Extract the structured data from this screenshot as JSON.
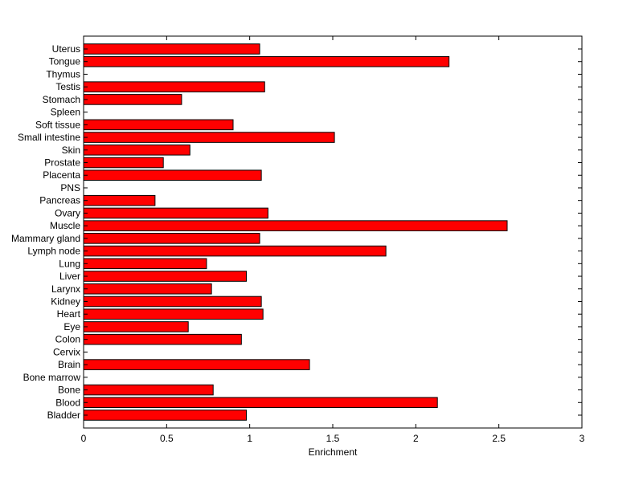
{
  "chart_data": {
    "type": "bar",
    "orientation": "horizontal",
    "categories": [
      "Bladder",
      "Blood",
      "Bone",
      "Bone marrow",
      "Brain",
      "Cervix",
      "Colon",
      "Eye",
      "Heart",
      "Kidney",
      "Larynx",
      "Liver",
      "Lung",
      "Lymph node",
      "Mammary gland",
      "Muscle",
      "Ovary",
      "Pancreas",
      "PNS",
      "Placenta",
      "Prostate",
      "Skin",
      "Small intestine",
      "Soft tissue",
      "Spleen",
      "Stomach",
      "Testis",
      "Thymus",
      "Tongue",
      "Uterus"
    ],
    "values": [
      0.98,
      2.13,
      0.78,
      0,
      1.36,
      0,
      0.95,
      0.63,
      1.08,
      1.07,
      0.77,
      0.98,
      0.74,
      1.82,
      1.06,
      2.55,
      1.11,
      0.43,
      0,
      1.07,
      0.48,
      0.64,
      1.51,
      0.9,
      0,
      0.59,
      1.09,
      0,
      2.2,
      1.06
    ],
    "xlabel": "Enrichment",
    "xlim": [
      0,
      3
    ],
    "xticks": [
      "0",
      "0.5",
      "1",
      "1.5",
      "2",
      "2.5",
      "3"
    ],
    "grid": false,
    "colors": {
      "bar": "#ff0000",
      "bar_edge": "#000000",
      "axes": "#000000"
    }
  }
}
